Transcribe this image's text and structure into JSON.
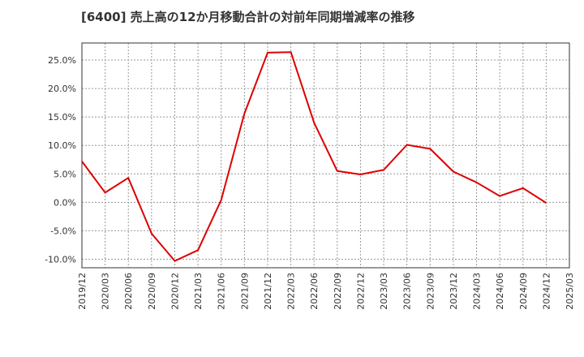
{
  "chart_data": {
    "type": "line",
    "title": "[6400]  売上高の12か月移動合計の対前年同期増減率の推移",
    "xlabel": "",
    "ylabel": "",
    "x": [
      "2019/12",
      "2020/03",
      "2020/06",
      "2020/09",
      "2020/12",
      "2021/03",
      "2021/06",
      "2021/09",
      "2021/12",
      "2022/03",
      "2022/06",
      "2022/09",
      "2022/12",
      "2023/03",
      "2023/06",
      "2023/09",
      "2023/12",
      "2024/03",
      "2024/06",
      "2024/09",
      "2024/12",
      "2025/03"
    ],
    "series": [
      {
        "name": "対前年同期増減率",
        "color": "#dd0000",
        "values": [
          7.2,
          1.7,
          4.3,
          -5.5,
          -10.3,
          -8.4,
          0.4,
          15.6,
          26.3,
          26.4,
          14.0,
          5.5,
          4.9,
          5.7,
          10.1,
          9.4,
          5.4,
          3.5,
          1.1,
          2.5,
          -0.1,
          null
        ]
      }
    ],
    "ylim": [
      -11.5,
      28.0
    ],
    "yticks": [
      -10,
      -5,
      0,
      5,
      10,
      15,
      20,
      25
    ],
    "ytick_labels": [
      "-10.0%",
      "-5.0%",
      "0.0%",
      "5.0%",
      "10.0%",
      "15.0%",
      "20.0%",
      "25.0%"
    ],
    "grid": true
  }
}
